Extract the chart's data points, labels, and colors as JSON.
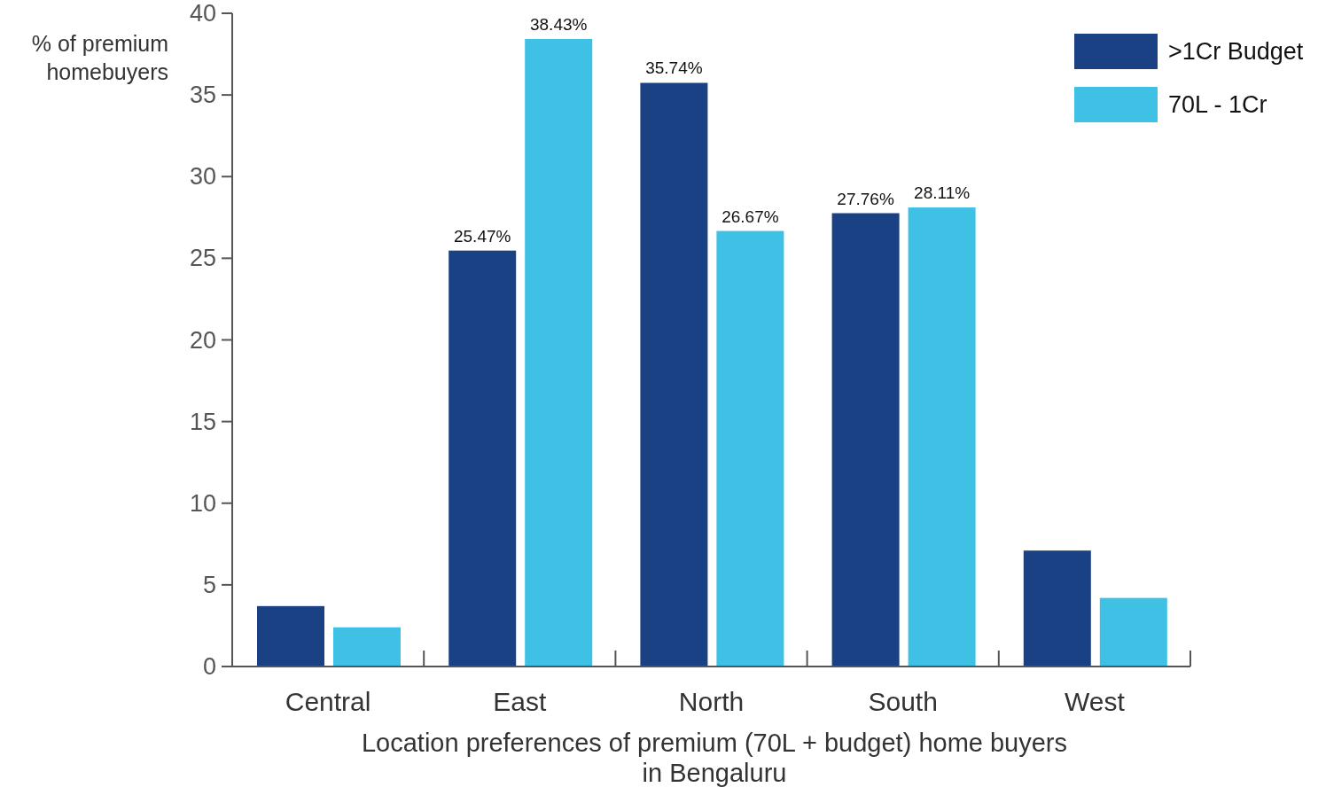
{
  "chart_data": {
    "type": "bar",
    "xlabel": "Location preferences of premium (70L + budget) home buyers in Bengaluru",
    "ylabel": "% of premium homebuyers",
    "categories": [
      "Central",
      "East",
      "North",
      "South",
      "West"
    ],
    "series": [
      {
        "name": ">1Cr Budget",
        "color": "#1b4185",
        "values": [
          3.7,
          25.47,
          35.74,
          27.76,
          7.1
        ],
        "value_labels": [
          null,
          "25.47%",
          "35.74%",
          "27.76%",
          null
        ]
      },
      {
        "name": "70L - 1Cr",
        "color": "#3ec1e5",
        "values": [
          2.4,
          38.43,
          26.67,
          28.11,
          4.2
        ],
        "value_labels": [
          null,
          "38.43%",
          "26.67%",
          "28.11%",
          null
        ]
      }
    ],
    "ylim": [
      0,
      40
    ],
    "yticks": [
      0,
      5,
      10,
      15,
      20,
      25,
      30,
      35,
      40
    ],
    "grid": false,
    "legend": "top right"
  }
}
